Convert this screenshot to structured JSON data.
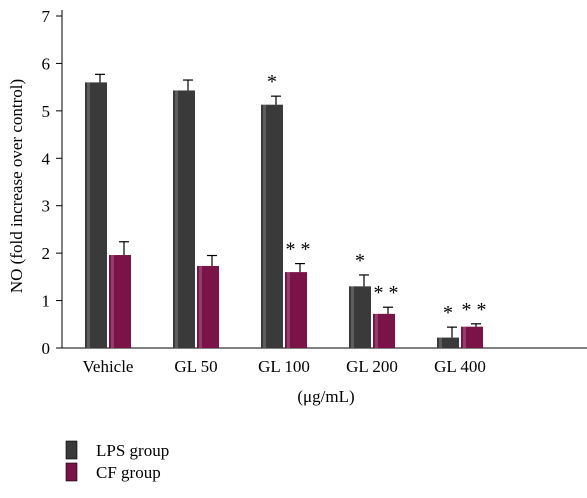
{
  "colors": {
    "lps": "#3a3a3a",
    "cf": "#7a1448",
    "axis": "#000000",
    "error_bar": "#000000"
  },
  "chart_data": {
    "type": "bar",
    "title": "",
    "xlabel": "(μg/mL)",
    "ylabel": "NO (fold increase over control)",
    "ylim": [
      0,
      7
    ],
    "yticks": [
      0,
      1,
      2,
      3,
      4,
      5,
      6,
      7
    ],
    "categories": [
      "Vehicle",
      "GL 50",
      "GL 100",
      "GL 200",
      "GL 400"
    ],
    "grid": false,
    "legend_position": "bottom-left",
    "series": [
      {
        "name": "LPS group",
        "color_key": "lps",
        "values": [
          5.6,
          5.43,
          5.13,
          1.3,
          0.22
        ],
        "errors": [
          0.17,
          0.22,
          0.18,
          0.24,
          0.22
        ],
        "significance": [
          "",
          "",
          "*",
          "*",
          "*"
        ]
      },
      {
        "name": "CF group",
        "color_key": "cf",
        "values": [
          1.96,
          1.73,
          1.6,
          0.72,
          0.45
        ],
        "errors": [
          0.28,
          0.22,
          0.18,
          0.14,
          0.06
        ],
        "significance": [
          "",
          "",
          "* *",
          "* *",
          "* *"
        ]
      }
    ]
  }
}
